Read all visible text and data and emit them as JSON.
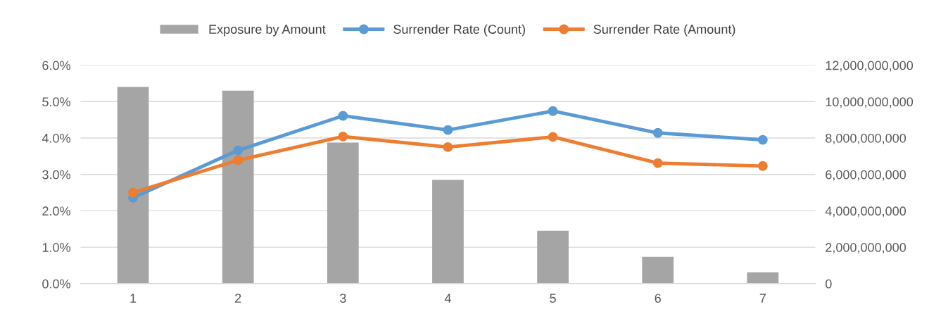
{
  "chart_data": {
    "type": "line",
    "categories": [
      "1",
      "2",
      "3",
      "4",
      "5",
      "6",
      "7"
    ],
    "series": [
      {
        "name": "Exposure by Amount",
        "type": "bar",
        "axis": "y2",
        "color": "#a5a5a5",
        "values": [
          10800000000,
          10600000000,
          7750000000,
          5700000000,
          2900000000,
          1470000000,
          620000000
        ]
      },
      {
        "name": "Surrender Rate (Count)",
        "color": "#5b9bd5",
        "values": [
          2.36,
          3.66,
          4.61,
          4.22,
          4.74,
          4.14,
          3.95
        ]
      },
      {
        "name": "Surrender Rate (Amount)",
        "color": "#ed7d31",
        "values": [
          2.5,
          3.39,
          4.04,
          3.75,
          4.03,
          3.31,
          3.23
        ]
      }
    ],
    "ylim": [
      0,
      6
    ],
    "yticks": [
      {
        "value": 0,
        "label": "0.0%"
      },
      {
        "value": 1,
        "label": "1.0%"
      },
      {
        "value": 2,
        "label": "2.0%"
      },
      {
        "value": 3,
        "label": "3.0%"
      },
      {
        "value": 4,
        "label": "4.0%"
      },
      {
        "value": 5,
        "label": "5.0%"
      },
      {
        "value": 6,
        "label": "6.0%"
      }
    ],
    "y2lim": [
      0,
      12000000000
    ],
    "y2ticks": [
      0,
      {
        "value": 2000000000,
        "label": "2,000,000,000"
      },
      {
        "value": 4000000000,
        "label": "4,000,000,000"
      },
      {
        "value": 6000000000,
        "label": "6,000,000,000"
      },
      {
        "value": 8000000000,
        "label": "8,000,000,000"
      },
      {
        "value": 10000000000,
        "label": "10,000,000,000"
      },
      {
        "value": 12000000000,
        "label": "12,000,000,000"
      }
    ],
    "grid": "y",
    "legend": "top",
    "marker": "circle",
    "line_style": "solid"
  }
}
